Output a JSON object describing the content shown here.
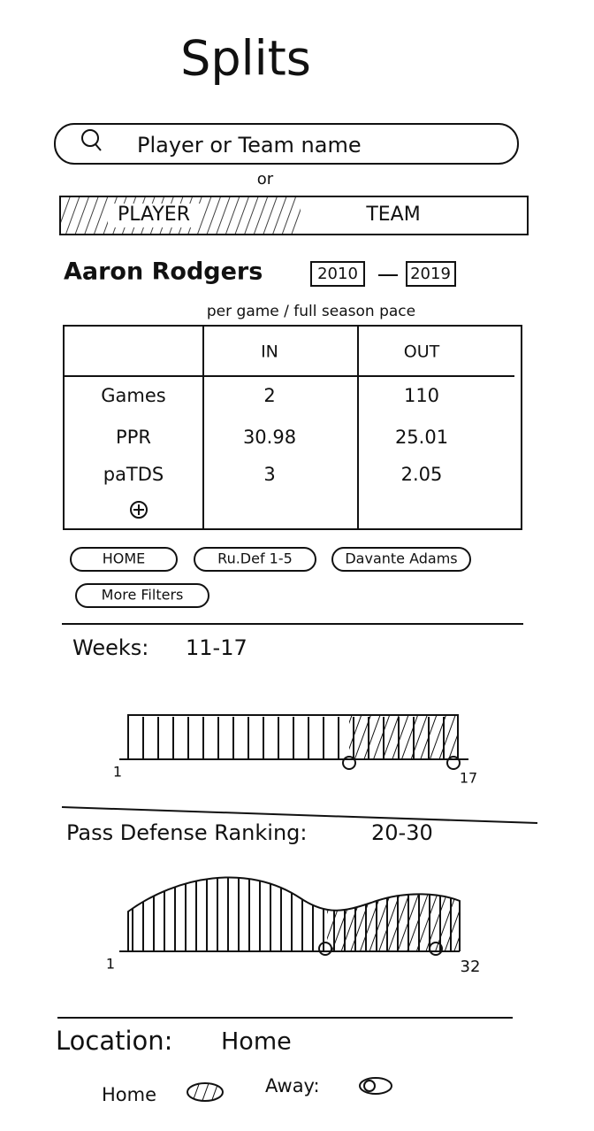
{
  "header": {
    "title": "Splits"
  },
  "search": {
    "placeholder": "Player or Team name",
    "separator": "or",
    "toggle": [
      "PLAYER",
      "TEAM"
    ]
  },
  "player": {
    "name": "Aaron Rodgers",
    "year_from": "2010",
    "year_to": "2019",
    "mode": "per game / full season pace"
  },
  "table": {
    "columns": [
      "IN",
      "OUT"
    ],
    "rows": [
      [
        "Games",
        "2",
        "110"
      ],
      [
        "PPR",
        "30.98",
        "25.01"
      ],
      [
        "paTDS",
        "3",
        "2.05"
      ]
    ]
  },
  "filters": [
    "HOME",
    "Ru.Def 1-5",
    "Davante Adams",
    "More Filters"
  ],
  "weeks": {
    "label": "Weeks:",
    "range": "11-17",
    "min_label": "1",
    "max_label": "17"
  },
  "pass_defense": {
    "label": "Pass Defense Ranking:",
    "range": "20-30",
    "min_label": "1",
    "max_label": "32"
  },
  "location": {
    "label": "Location:",
    "value": "Home",
    "options": [
      "Home",
      "Away:"
    ]
  }
}
